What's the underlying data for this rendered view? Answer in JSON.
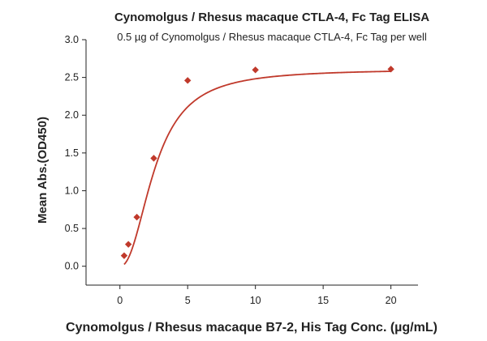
{
  "chart_data": {
    "type": "scatter",
    "title": "Cynomolgus / Rhesus macaque CTLA-4, Fc Tag ELISA",
    "subtitle": "0.5 µg of Cynomolgus / Rhesus macaque CTLA-4, Fc Tag per well",
    "xlabel": "Cynomolgus / Rhesus macaque B7-2, His Tag Conc. (µg/mL)",
    "ylabel": "Mean Abs.(OD450)",
    "xlim": [
      -2.5,
      22
    ],
    "ylim": [
      -0.25,
      3.0
    ],
    "xticks": [
      0,
      5,
      10,
      15,
      20
    ],
    "yticks": [
      0.0,
      0.5,
      1.0,
      1.5,
      2.0,
      2.5,
      3.0
    ],
    "xtick_labels": [
      "0",
      "5",
      "10",
      "15",
      "20"
    ],
    "ytick_labels": [
      "0.0",
      "0.5",
      "1.0",
      "1.5",
      "2.0",
      "2.5",
      "3.0"
    ],
    "grid": false,
    "color": "#c0392b",
    "marker": "diamond",
    "x": [
      0.3125,
      0.625,
      1.25,
      2.5,
      5,
      10,
      20
    ],
    "y": [
      0.14,
      0.29,
      0.65,
      1.43,
      2.46,
      2.6,
      2.61
    ],
    "fit_curve": true
  }
}
